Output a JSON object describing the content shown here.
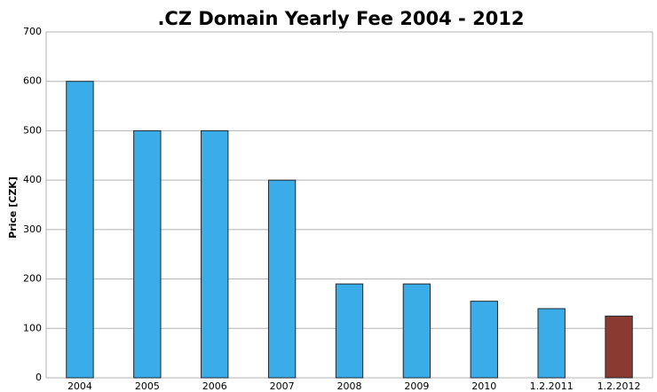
{
  "chart_data": {
    "type": "bar",
    "title": ".CZ Domain Yearly Fee 2004 - 2012",
    "y_label": "Price [CZK]",
    "categories": [
      "2004",
      "2005",
      "2006",
      "2007",
      "2008",
      "2009",
      "2010",
      "1.2.2011",
      "1.2.2012"
    ],
    "values": [
      600,
      500,
      500,
      400,
      190,
      190,
      155,
      140,
      125
    ],
    "colors": [
      "#3aace8",
      "#3aace8",
      "#3aace8",
      "#3aace8",
      "#3aace8",
      "#3aace8",
      "#3aace8",
      "#3aace8",
      "#8b3a32"
    ],
    "ylim": [
      0,
      700
    ],
    "yticks": [
      0,
      100,
      200,
      300,
      400,
      500,
      600,
      700
    ],
    "grid": true
  }
}
